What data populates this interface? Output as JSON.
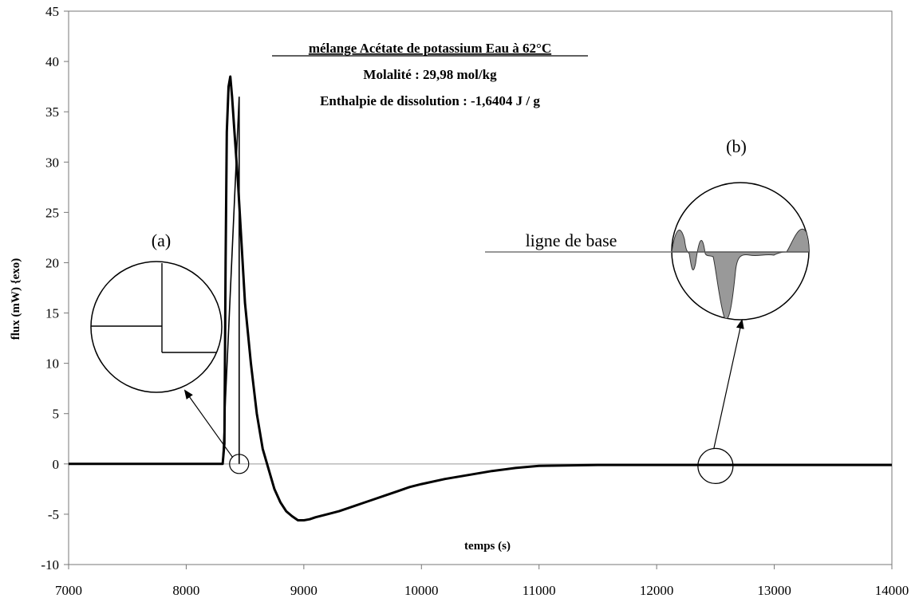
{
  "chart_data": {
    "type": "line",
    "title": "mélange Acétate de potassium Eau à 62°C",
    "subtitle_1": "Molalité : 29,98 mol/kg",
    "subtitle_2": "Enthalpie de dissolution : -1,6404 J / g",
    "xlabel": "temps (s)",
    "ylabel": "flux (mW) {exo)",
    "xlim": [
      7000,
      14000
    ],
    "ylim": [
      -10,
      45
    ],
    "xticks": [
      7000,
      8000,
      9000,
      10000,
      11000,
      12000,
      13000,
      14000
    ],
    "yticks": [
      -10,
      -5,
      0,
      5,
      10,
      15,
      20,
      25,
      30,
      35,
      40,
      45
    ],
    "grid": false,
    "legend": "none",
    "series": [
      {
        "values_xy": [
          [
            7000,
            0
          ],
          [
            8000,
            0
          ],
          [
            8310,
            0
          ],
          [
            8325,
            2
          ],
          [
            8335,
            20
          ],
          [
            8345,
            33
          ],
          [
            8360,
            37.5
          ],
          [
            8375,
            38.5
          ],
          [
            8390,
            36.5
          ],
          [
            8410,
            33
          ],
          [
            8440,
            28
          ],
          [
            8470,
            22
          ],
          [
            8500,
            16
          ],
          [
            8550,
            10
          ],
          [
            8600,
            5
          ],
          [
            8650,
            1.5
          ],
          [
            8700,
            -0.5
          ],
          [
            8750,
            -2.5
          ],
          [
            8800,
            -3.8
          ],
          [
            8850,
            -4.7
          ],
          [
            8900,
            -5.2
          ],
          [
            8950,
            -5.6
          ],
          [
            9000,
            -5.6
          ],
          [
            9050,
            -5.5
          ],
          [
            9100,
            -5.3
          ],
          [
            9200,
            -5
          ],
          [
            9300,
            -4.7
          ],
          [
            9400,
            -4.3
          ],
          [
            9500,
            -3.9
          ],
          [
            9600,
            -3.5
          ],
          [
            9700,
            -3.1
          ],
          [
            9800,
            -2.7
          ],
          [
            9900,
            -2.3
          ],
          [
            10000,
            -2
          ],
          [
            10200,
            -1.5
          ],
          [
            10400,
            -1.1
          ],
          [
            10600,
            -0.7
          ],
          [
            10800,
            -0.4
          ],
          [
            11000,
            -0.2
          ],
          [
            11500,
            -0.1
          ],
          [
            12000,
            -0.1
          ],
          [
            12500,
            -0.1
          ],
          [
            13000,
            -0.1
          ],
          [
            14000,
            -0.1
          ]
        ]
      },
      {
        "values_xy": [
          [
            8310,
            0
          ],
          [
            8310,
            0.2
          ],
          [
            8450,
            36.5
          ],
          [
            8450,
            0
          ]
        ]
      }
    ],
    "annotations": {
      "a_label": "(a)",
      "b_label": "(b)",
      "baseline_label": "ligne de base",
      "marker_a": [
        8450,
        0
      ],
      "marker_b": [
        12500,
        -0.2
      ]
    }
  }
}
